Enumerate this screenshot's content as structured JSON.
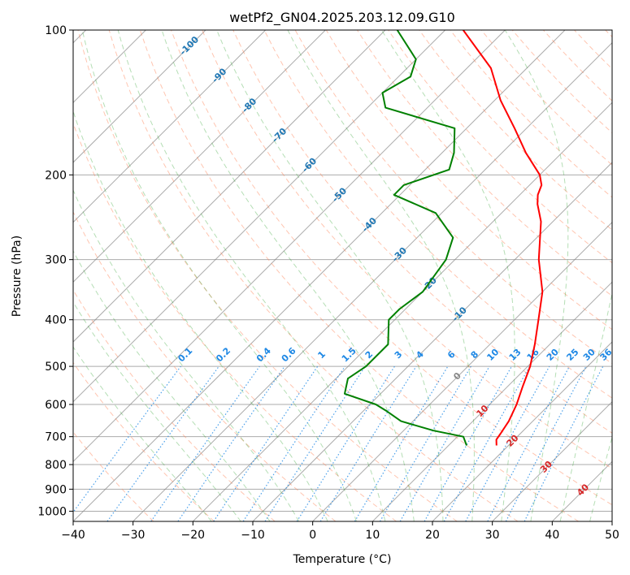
{
  "chart_data": {
    "type": "line",
    "title": "wetPf2_GN04.2025.203.12.09.G10",
    "xlabel": "Temperature (°C)",
    "ylabel": "Pressure (hPa)",
    "xlim": [
      -40,
      50
    ],
    "ylim": [
      1050,
      100
    ],
    "y_scale": "log",
    "skew": true,
    "grid": true,
    "x_ticks": [
      -40,
      -30,
      -20,
      -10,
      0,
      10,
      20,
      30,
      40,
      50
    ],
    "y_ticks": [
      100,
      200,
      300,
      400,
      500,
      600,
      700,
      800,
      900,
      1000
    ],
    "series": [
      {
        "color": "#ff0000",
        "points": [
          {
            "p": 730,
            "t": 18
          },
          {
            "p": 710,
            "t": 17
          },
          {
            "p": 690,
            "t": 16.7
          },
          {
            "p": 650,
            "t": 16
          },
          {
            "p": 600,
            "t": 14.5
          },
          {
            "p": 550,
            "t": 12.5
          },
          {
            "p": 500,
            "t": 10.4
          },
          {
            "p": 450,
            "t": 7.5
          },
          {
            "p": 400,
            "t": 4
          },
          {
            "p": 350,
            "t": 0
          },
          {
            "p": 300,
            "t": -6
          },
          {
            "p": 250,
            "t": -12
          },
          {
            "p": 230,
            "t": -15.5
          },
          {
            "p": 220,
            "t": -17
          },
          {
            "p": 210,
            "t": -18
          },
          {
            "p": 200,
            "t": -20
          },
          {
            "p": 180,
            "t": -26
          },
          {
            "p": 160,
            "t": -32
          },
          {
            "p": 140,
            "t": -39
          },
          {
            "p": 120,
            "t": -46
          },
          {
            "p": 100,
            "t": -57
          }
        ]
      },
      {
        "color": "#008000",
        "points": [
          {
            "p": 730,
            "t": 13
          },
          {
            "p": 700,
            "t": 11
          },
          {
            "p": 680,
            "t": 5
          },
          {
            "p": 650,
            "t": -2
          },
          {
            "p": 620,
            "t": -6
          },
          {
            "p": 600,
            "t": -9
          },
          {
            "p": 570,
            "t": -16
          },
          {
            "p": 530,
            "t": -18
          },
          {
            "p": 500,
            "t": -17
          },
          {
            "p": 450,
            "t": -17
          },
          {
            "p": 400,
            "t": -21
          },
          {
            "p": 380,
            "t": -21
          },
          {
            "p": 350,
            "t": -20
          },
          {
            "p": 300,
            "t": -21.5
          },
          {
            "p": 270,
            "t": -24
          },
          {
            "p": 240,
            "t": -31
          },
          {
            "p": 220,
            "t": -41
          },
          {
            "p": 210,
            "t": -41
          },
          {
            "p": 195,
            "t": -36
          },
          {
            "p": 180,
            "t": -38
          },
          {
            "p": 160,
            "t": -42
          },
          {
            "p": 145,
            "t": -57
          },
          {
            "p": 135,
            "t": -60
          },
          {
            "p": 125,
            "t": -58
          },
          {
            "p": 115,
            "t": -60
          },
          {
            "p": 100,
            "t": -68
          }
        ]
      }
    ],
    "isotherm_labels": [
      "-100",
      "-90",
      "-80",
      "-70",
      "-60",
      "-50",
      "-40",
      "-30",
      "-20",
      "-10"
    ],
    "mixing_ratio_labels": [
      "0.1",
      "0.2",
      "0.4",
      "0.6",
      "1",
      "1.5",
      "2",
      "3",
      "4",
      "6",
      "8",
      "10",
      "13",
      "16",
      "20",
      "25",
      "30",
      "36"
    ],
    "moist_adiabat_labels": [
      "0",
      "10",
      "20",
      "30",
      "40"
    ],
    "colors": {
      "isotherm": "#888888",
      "isotherm_label": "#1f77b4",
      "mixing_ratio": "#1e88e5",
      "dry_adiabat": "#ff7f50",
      "moist_adiabat": "#2ca02c",
      "moist_label": "#d62728",
      "zero_label": "#888888"
    }
  }
}
